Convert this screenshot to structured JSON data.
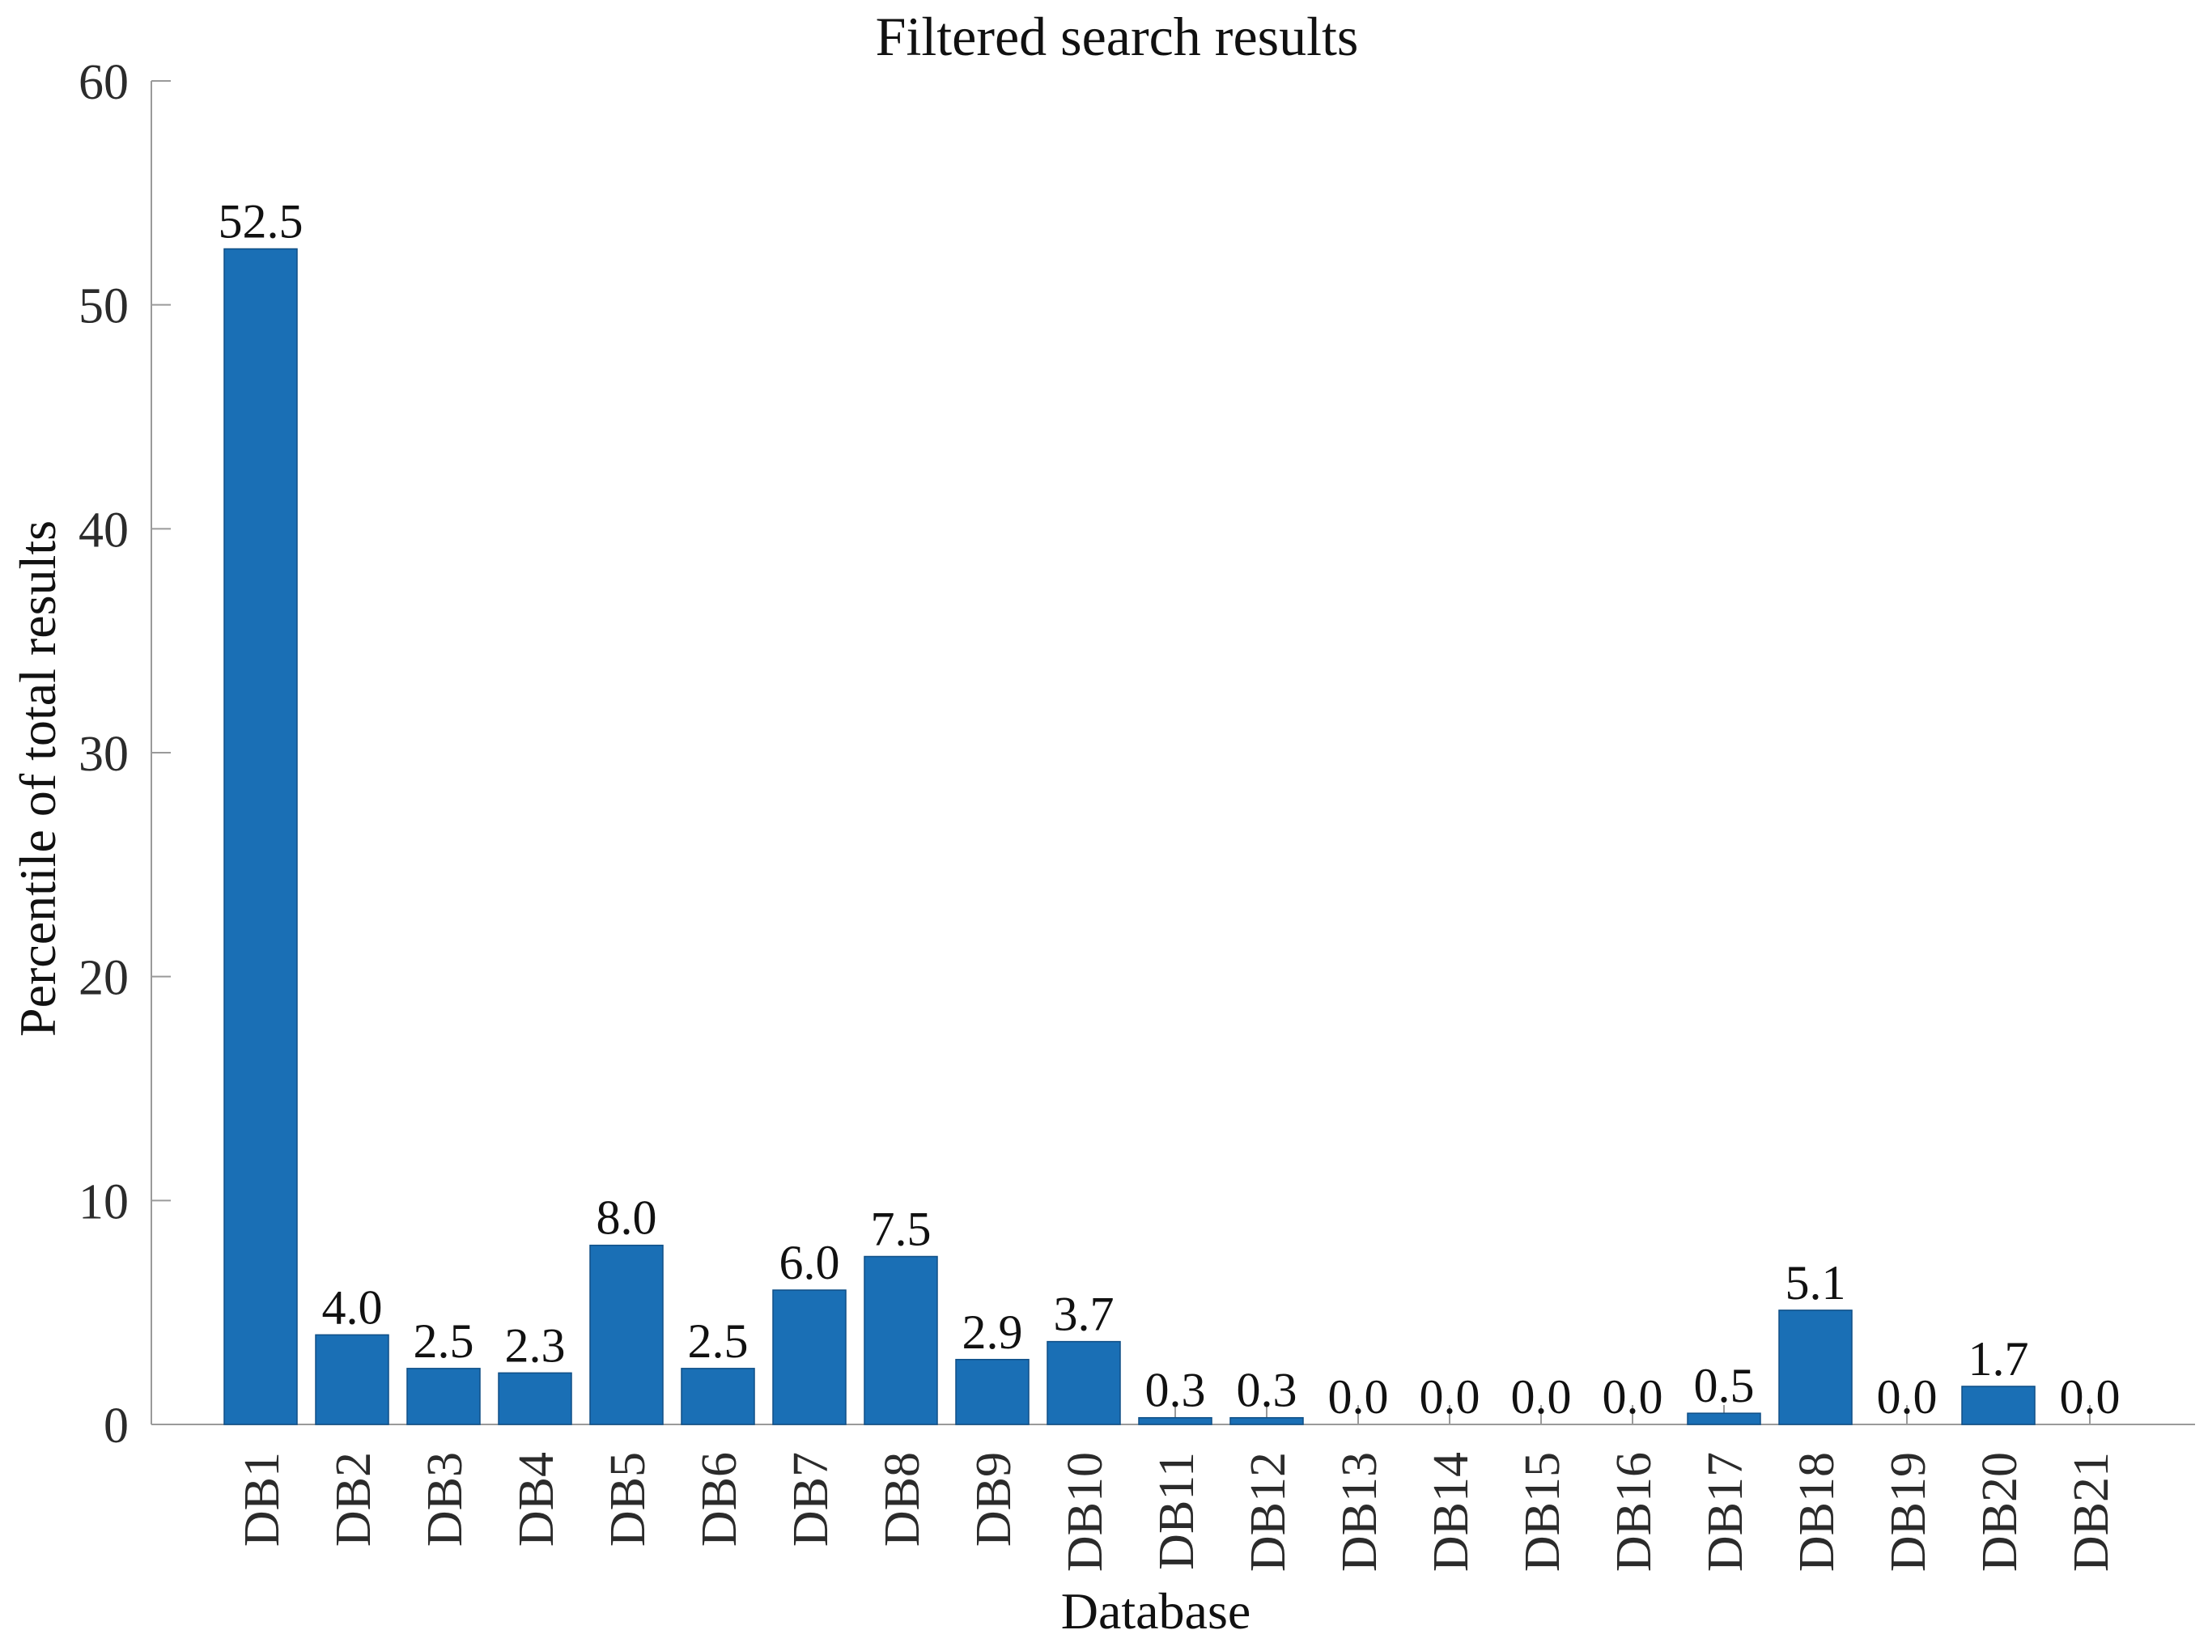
{
  "chart_data": {
    "type": "bar",
    "title": "Filtered search results",
    "xlabel": "Database",
    "ylabel": "Percentile of total results",
    "categories": [
      "DB1",
      "DB2",
      "DB3",
      "DB4",
      "DB5",
      "DB6",
      "DB7",
      "DB8",
      "DB9",
      "DB10",
      "DB11",
      "DB12",
      "DB13",
      "DB14",
      "DB15",
      "DB16",
      "DB17",
      "DB18",
      "DB19",
      "DB20",
      "DB21"
    ],
    "values": [
      52.5,
      4.0,
      2.5,
      2.3,
      8.0,
      2.5,
      6.0,
      7.5,
      2.9,
      3.7,
      0.3,
      0.3,
      0.0,
      0.0,
      0.0,
      0.0,
      0.5,
      5.1,
      0.0,
      1.7,
      0.0
    ],
    "value_labels": [
      "52.5",
      "4.0",
      "2.5",
      "2.3",
      "8.0",
      "2.5",
      "6.0",
      "7.5",
      "2.9",
      "3.7",
      "0.3",
      "0.3",
      "0.0",
      "0.0",
      "0.0",
      "0.0",
      "0.5",
      "5.1",
      "0.0",
      "1.7",
      "0.0"
    ],
    "ylim": [
      0,
      60
    ],
    "yticks": [
      "0",
      "10",
      "20",
      "30",
      "40",
      "50",
      "60"
    ],
    "grid": false,
    "bar_color": "#1a6fb5",
    "axis_color": "#9a9a9a"
  }
}
